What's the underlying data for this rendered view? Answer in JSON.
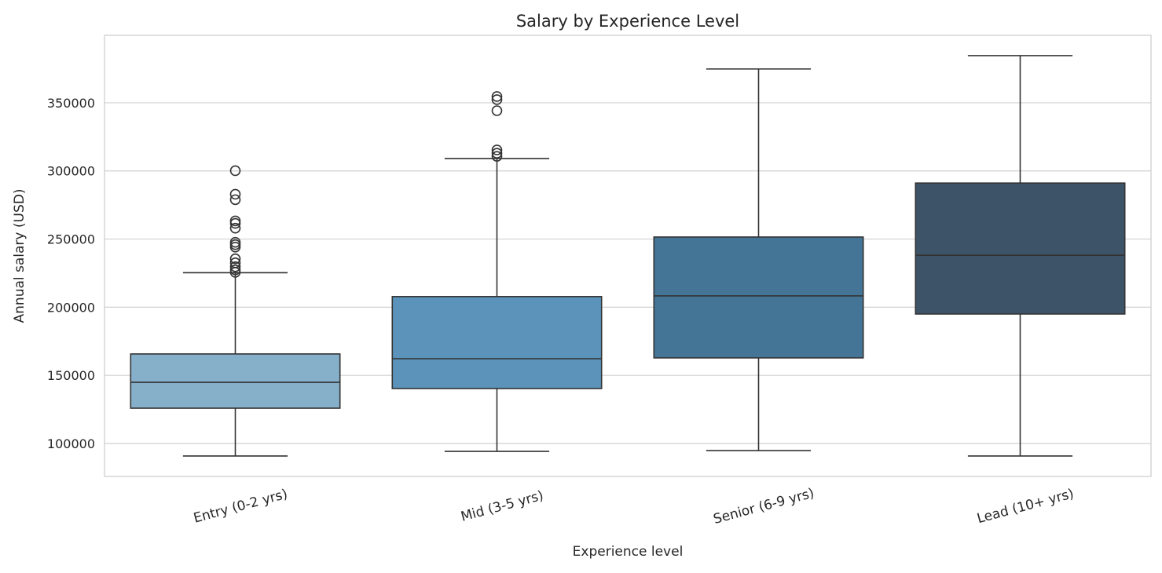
{
  "chart_data": {
    "type": "box",
    "title": "Salary by Experience Level",
    "xlabel": "Experience level",
    "ylabel": "Annual salary (USD)",
    "ylim": [
      75800,
      399500
    ],
    "yticks": [
      100000,
      150000,
      200000,
      250000,
      300000,
      350000
    ],
    "grid": true,
    "categories": [
      "Entry (0-2 yrs)",
      "Mid (3-5 yrs)",
      "Senior (6-9 yrs)",
      "Lead (10+ yrs)"
    ],
    "colors": [
      "#86afca",
      "#5b93ba",
      "#447597",
      "#3d5468"
    ],
    "boxes": [
      {
        "whisker_low": 90800,
        "q1": 125900,
        "median": 144900,
        "q3": 165700,
        "whisker_high": 225300,
        "outliers": [
          300200,
          282900,
          278900,
          263300,
          261500,
          258000,
          247600,
          245900,
          244100,
          235500,
          232600,
          229700,
          227400,
          225600
        ]
      },
      {
        "whisker_low": 94200,
        "q1": 140300,
        "median": 162200,
        "q3": 207800,
        "whisker_high": 309100,
        "outliers": [
          354600,
          352300,
          344200,
          315400,
          313000,
          310700
        ]
      },
      {
        "whisker_low": 94800,
        "q1": 162800,
        "median": 208300,
        "q3": 251500,
        "whisker_high": 374800,
        "outliers": []
      },
      {
        "whisker_low": 90800,
        "q1": 195000,
        "median": 238100,
        "q3": 291100,
        "whisker_high": 384600,
        "outliers": []
      }
    ]
  }
}
